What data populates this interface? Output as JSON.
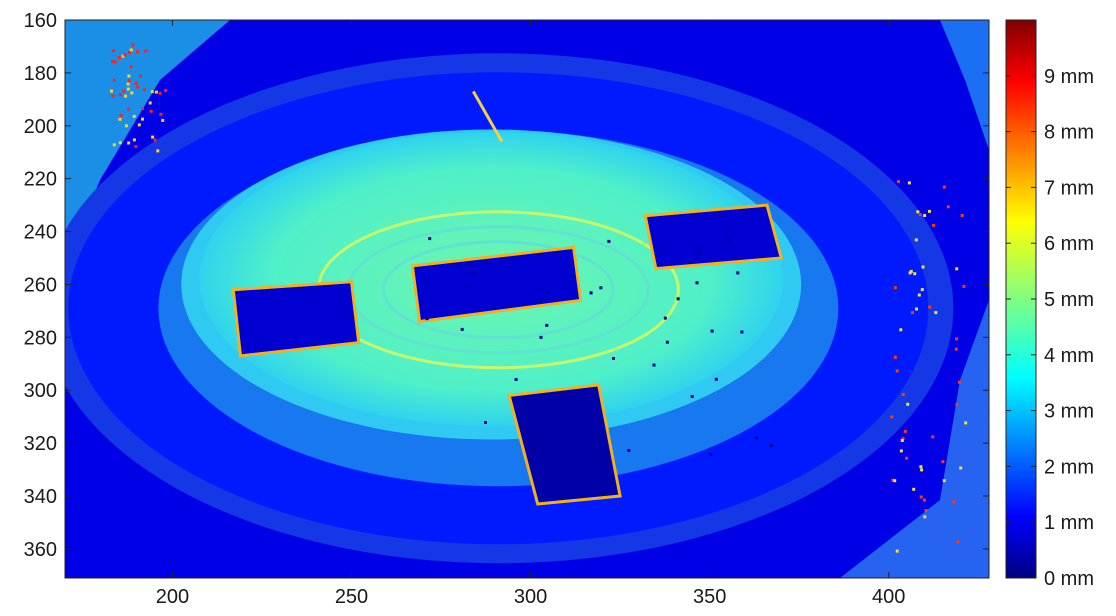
{
  "chart_data": {
    "type": "heatmap",
    "title": "",
    "xlabel": "",
    "ylabel": "",
    "xlim": [
      170,
      428
    ],
    "ylim": [
      371,
      160
    ],
    "x_ticks": [
      200,
      250,
      300,
      350,
      400
    ],
    "x_tick_labels": [
      "200",
      "250",
      "300",
      "350",
      "400"
    ],
    "y_ticks": [
      160,
      180,
      200,
      220,
      240,
      260,
      280,
      300,
      320,
      340,
      360
    ],
    "y_tick_labels": [
      "160",
      "180",
      "200",
      "220",
      "240",
      "260",
      "280",
      "300",
      "320",
      "340",
      "360"
    ],
    "colormap": "jet",
    "colorbar": {
      "range": [
        0,
        10
      ],
      "ticks": [
        0,
        1,
        2,
        3,
        4,
        5,
        6,
        7,
        8,
        9
      ],
      "tick_labels": [
        "0 mm",
        "1 mm",
        "2 mm",
        "3 mm",
        "4 mm",
        "5 mm",
        "6 mm",
        "7 mm",
        "8 mm",
        "9 mm"
      ],
      "unit": "mm"
    },
    "regions": [
      {
        "name": "background",
        "value_mm": 1.0
      },
      {
        "name": "outer-ring",
        "value_mm": 1.5
      },
      {
        "name": "inner-disc",
        "value_mm": 3.8
      },
      {
        "name": "gap-left",
        "value_mm": 0.8
      },
      {
        "name": "gap-center",
        "value_mm": 0.8
      },
      {
        "name": "gap-right",
        "value_mm": 0.8
      },
      {
        "name": "gap-bottom",
        "value_mm": 0.4
      }
    ]
  }
}
